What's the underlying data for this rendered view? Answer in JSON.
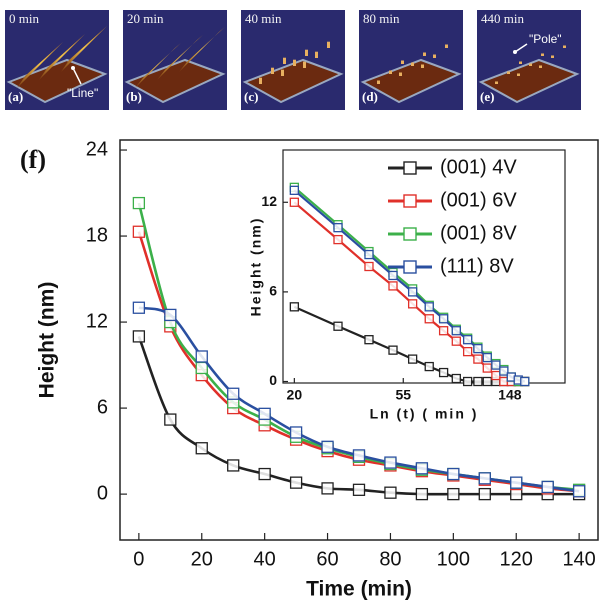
{
  "panels": [
    {
      "time": "0 min",
      "letter": "(a)",
      "annotation": "\"Line\""
    },
    {
      "time": "20 min",
      "letter": "(b)"
    },
    {
      "time": "40 min",
      "letter": "(c)"
    },
    {
      "time": "80 min",
      "letter": "(d)"
    },
    {
      "time": "440 min",
      "letter": "(e)",
      "annotation": "\"Pole\""
    }
  ],
  "chart_data": [
    {
      "type": "line",
      "label": "(f)",
      "xlabel": "Time (min)",
      "ylabel": "Height (nm)",
      "x": [
        0,
        10,
        20,
        30,
        40,
        50,
        60,
        70,
        80,
        90,
        100,
        110,
        120,
        130,
        140
      ],
      "xlim": [
        -6,
        146
      ],
      "xticks": [
        0,
        20,
        40,
        60,
        80,
        100,
        120,
        140
      ],
      "ylim": [
        -3.2,
        24.7
      ],
      "yticks": [
        0,
        6,
        12,
        18,
        24
      ],
      "legend": "upper right",
      "series": [
        {
          "name": "(001) 4V",
          "color": "#222222",
          "values": [
            11.0,
            5.2,
            3.2,
            2.0,
            1.4,
            0.8,
            0.4,
            0.3,
            0.1,
            0,
            0,
            0,
            0,
            0,
            0
          ]
        },
        {
          "name": "(001) 6V",
          "color": "#e0302a",
          "values": [
            18.3,
            11.7,
            8.3,
            6.0,
            4.8,
            3.8,
            3.0,
            2.4,
            2.0,
            1.6,
            1.3,
            1.0,
            0.7,
            0.4,
            0.2
          ]
        },
        {
          "name": "(001) 8V",
          "color": "#3cb04a",
          "values": [
            20.3,
            12.0,
            8.8,
            6.4,
            5.2,
            4.0,
            3.2,
            2.6,
            2.1,
            1.7,
            1.4,
            1.1,
            0.8,
            0.5,
            0.3
          ]
        },
        {
          "name": "(111) 8V",
          "color": "#2a4fa0",
          "values": [
            13.0,
            12.5,
            9.6,
            7.0,
            5.6,
            4.3,
            3.3,
            2.7,
            2.2,
            1.8,
            1.4,
            1.1,
            0.8,
            0.5,
            0.2
          ]
        }
      ]
    },
    {
      "type": "line",
      "xlabel": "Ln (t) ( min )",
      "ylabel": "Height (nm)",
      "xscale": "log",
      "x": [
        20,
        30,
        40,
        50,
        60,
        70,
        80,
        90,
        100,
        110,
        120,
        130,
        140,
        150,
        160,
        170
      ],
      "xlim": [
        18,
        247
      ],
      "xticks": [
        20,
        55,
        148
      ],
      "ylim": [
        -0.1,
        15.5
      ],
      "yticks": [
        0,
        6,
        12
      ],
      "series": [
        {
          "color": "#222222",
          "values": [
            5.0,
            3.7,
            2.8,
            2.1,
            1.5,
            1.0,
            0.6,
            0.2,
            0,
            0,
            0,
            0,
            0,
            0,
            0,
            0
          ]
        },
        {
          "color": "#e0302a",
          "values": [
            12.0,
            9.5,
            7.7,
            6.4,
            5.2,
            4.2,
            3.4,
            2.7,
            2.0,
            1.5,
            0.9,
            0.4,
            0,
            0,
            0,
            0
          ]
        },
        {
          "color": "#3cb04a",
          "values": [
            13.0,
            10.5,
            8.7,
            7.3,
            6.2,
            5.1,
            4.3,
            3.5,
            2.9,
            2.3,
            1.7,
            1.2,
            0.8,
            0.3,
            0,
            0
          ]
        },
        {
          "color": "#2a4fa0",
          "values": [
            12.8,
            10.3,
            8.5,
            7.1,
            6.0,
            5.0,
            4.2,
            3.4,
            2.8,
            2.2,
            1.6,
            1.1,
            0.7,
            0.3,
            0.1,
            0
          ]
        }
      ]
    }
  ]
}
